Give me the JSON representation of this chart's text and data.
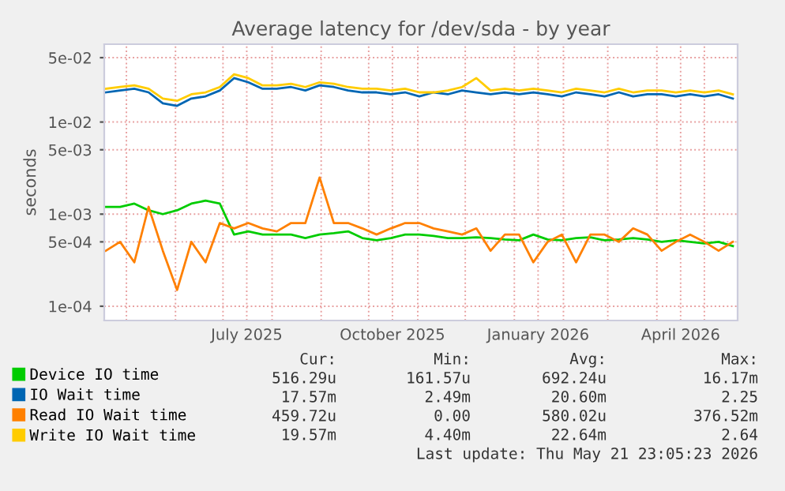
{
  "chart_data": {
    "type": "line",
    "title": "Average latency for /dev/sda - by year",
    "ylabel": "seconds",
    "x": [
      "2025-04-18",
      "2025-04-27",
      "2025-05-06",
      "2025-05-15",
      "2025-05-24",
      "2025-06-02",
      "2025-06-11",
      "2025-06-20",
      "2025-06-29",
      "2025-07-08",
      "2025-07-17",
      "2025-07-26",
      "2025-08-04",
      "2025-08-13",
      "2025-08-22",
      "2025-08-31",
      "2025-09-09",
      "2025-09-18",
      "2025-09-27",
      "2025-10-06",
      "2025-10-15",
      "2025-10-24",
      "2025-11-02",
      "2025-11-11",
      "2025-11-20",
      "2025-11-29",
      "2025-12-08",
      "2025-12-17",
      "2025-12-26",
      "2026-01-04",
      "2026-01-13",
      "2026-01-22",
      "2026-01-31",
      "2026-02-09",
      "2026-02-18",
      "2026-02-27",
      "2026-03-08",
      "2026-03-17",
      "2026-03-26",
      "2026-04-04",
      "2026-04-13",
      "2026-04-22",
      "2026-05-01",
      "2026-05-10",
      "2026-05-19"
    ],
    "series": [
      {
        "name": "Device IO time",
        "color": "#00cc00",
        "values": [
          0.0012,
          0.0012,
          0.0013,
          0.0011,
          0.001,
          0.0011,
          0.0013,
          0.0014,
          0.0013,
          0.0006,
          0.00065,
          0.0006,
          0.0006,
          0.0006,
          0.00055,
          0.0006,
          0.00062,
          0.00065,
          0.00055,
          0.00052,
          0.00055,
          0.0006,
          0.0006,
          0.00058,
          0.00055,
          0.00055,
          0.00056,
          0.00055,
          0.00053,
          0.00052,
          0.0006,
          0.00053,
          0.00052,
          0.00055,
          0.00056,
          0.00052,
          0.00053,
          0.00055,
          0.00053,
          0.0005,
          0.00052,
          0.0005,
          0.00048,
          0.0005,
          0.00045
        ]
      },
      {
        "name": "IO Wait time",
        "color": "#0066b3",
        "values": [
          0.021,
          0.022,
          0.023,
          0.021,
          0.016,
          0.015,
          0.018,
          0.019,
          0.022,
          0.03,
          0.027,
          0.023,
          0.023,
          0.024,
          0.022,
          0.025,
          0.024,
          0.022,
          0.021,
          0.021,
          0.02,
          0.021,
          0.019,
          0.021,
          0.02,
          0.022,
          0.021,
          0.02,
          0.021,
          0.02,
          0.021,
          0.02,
          0.019,
          0.021,
          0.02,
          0.019,
          0.021,
          0.019,
          0.02,
          0.02,
          0.019,
          0.02,
          0.019,
          0.02,
          0.018
        ]
      },
      {
        "name": "Read IO Wait time",
        "color": "#ff8000",
        "values": [
          0.0004,
          0.0005,
          0.0003,
          0.0012,
          0.0004,
          0.00015,
          0.0005,
          0.0003,
          0.0008,
          0.0007,
          0.0008,
          0.0007,
          0.00065,
          0.0008,
          0.0008,
          0.0025,
          0.0008,
          0.0008,
          0.0007,
          0.0006,
          0.0007,
          0.0008,
          0.0008,
          0.0007,
          0.00065,
          0.0006,
          0.0007,
          0.0004,
          0.0006,
          0.0006,
          0.0003,
          0.0005,
          0.0006,
          0.0003,
          0.0006,
          0.0006,
          0.0005,
          0.0007,
          0.0006,
          0.0004,
          0.0005,
          0.0006,
          0.0005,
          0.0004,
          0.0005
        ]
      },
      {
        "name": "Write IO Wait time",
        "color": "#ffcc00",
        "values": [
          0.023,
          0.024,
          0.025,
          0.023,
          0.018,
          0.017,
          0.02,
          0.021,
          0.024,
          0.033,
          0.03,
          0.025,
          0.025,
          0.026,
          0.024,
          0.027,
          0.026,
          0.024,
          0.023,
          0.023,
          0.022,
          0.023,
          0.021,
          0.021,
          0.022,
          0.024,
          0.03,
          0.022,
          0.023,
          0.022,
          0.023,
          0.022,
          0.021,
          0.023,
          0.022,
          0.021,
          0.023,
          0.021,
          0.022,
          0.022,
          0.021,
          0.022,
          0.021,
          0.022,
          0.02
        ]
      }
    ],
    "log": "y",
    "ylim": [
      7e-05,
      0.07
    ],
    "yticks": [
      {
        "value": 0.0001,
        "label": "1e-04"
      },
      {
        "value": 0.0005,
        "label": "5e-04"
      },
      {
        "value": 0.001,
        "label": "1e-03"
      },
      {
        "value": 0.005,
        "label": "5e-03"
      },
      {
        "value": 0.01,
        "label": "1e-02"
      },
      {
        "value": 0.05,
        "label": "5e-02"
      }
    ],
    "xlim": [
      "2025-04-17",
      "2026-05-22"
    ],
    "xticks": [
      {
        "value": "2025-05-01",
        "label": null
      },
      {
        "value": "2025-06-01",
        "label": null
      },
      {
        "value": "2025-07-01",
        "label": null
      },
      {
        "value": "2025-07-16",
        "label": "July 2025"
      },
      {
        "value": "2025-08-01",
        "label": null
      },
      {
        "value": "2025-09-01",
        "label": null
      },
      {
        "value": "2025-10-01",
        "label": null
      },
      {
        "value": "2025-10-16",
        "label": "October 2025"
      },
      {
        "value": "2025-11-01",
        "label": null
      },
      {
        "value": "2025-12-01",
        "label": null
      },
      {
        "value": "2026-01-01",
        "label": null
      },
      {
        "value": "2026-01-16",
        "label": "January 2026"
      },
      {
        "value": "2026-02-01",
        "label": null
      },
      {
        "value": "2026-03-01",
        "label": null
      },
      {
        "value": "2026-04-01",
        "label": null
      },
      {
        "value": "2026-04-16",
        "label": "April 2026"
      },
      {
        "value": "2026-05-01",
        "label": null
      }
    ],
    "grid": true,
    "legend": "bottom",
    "line_style": "solid",
    "marker": "none",
    "annotations": [
      "Cur:",
      "Min:",
      "Avg:",
      "Max:",
      "516.29u",
      "161.57u",
      "692.24u",
      "16.17m",
      "17.57m",
      "2.49m",
      "20.60m",
      "2.25",
      "459.72u",
      "0.00",
      "580.02u",
      "376.52m",
      "19.57m",
      "4.40m",
      "22.64m",
      "2.64",
      "Last update: Thu May 21 23:05:23 2026"
    ]
  }
}
